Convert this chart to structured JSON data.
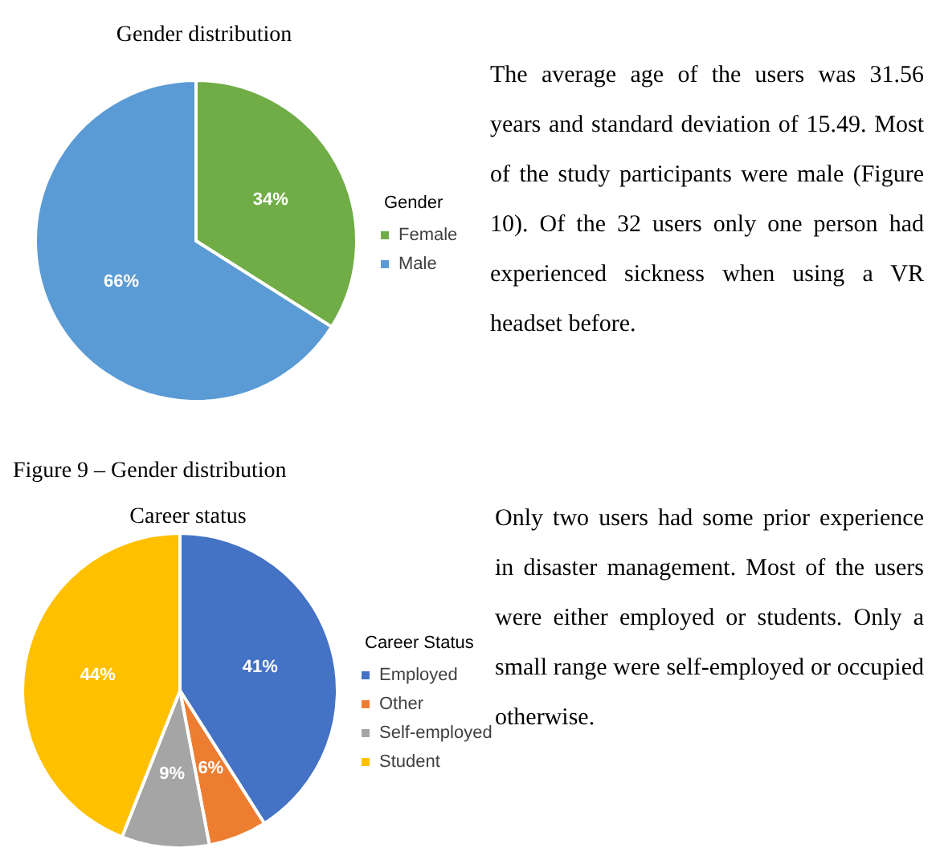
{
  "chart_data": [
    {
      "type": "pie",
      "title": "Gender distribution",
      "legend_title": "Gender",
      "legend": "right",
      "value_labels": [
        "34%",
        "66%"
      ],
      "categories": [
        "Female",
        "Male"
      ],
      "values": [
        34,
        66
      ],
      "colors": [
        "#70ad47",
        "#5b9bd5"
      ],
      "annotations": [
        "The average age of the users was 31.56 years and standard deviation of 15.49. Most of the study participants were male (Figure 10). Of the 32 users only one person had experienced sickness when using a VR headset before.",
        "Figure 9 – Gender distribution"
      ]
    },
    {
      "type": "pie",
      "title": "Career status",
      "legend_title": "Career Status",
      "legend": "right",
      "value_labels": [
        "41%",
        "6%",
        "9%",
        "44%"
      ],
      "categories": [
        "Employed",
        "Other",
        "Self-employed",
        "Student"
      ],
      "values": [
        41,
        6,
        9,
        44
      ],
      "colors": [
        "#4472c4",
        "#ed7d31",
        "#a5a5a5",
        "#ffc000"
      ],
      "annotations": [
        "Only two users had some prior experience in disaster management. Most of the users were either employed or students. Only a small range were self-employed or occupied otherwise."
      ]
    }
  ]
}
